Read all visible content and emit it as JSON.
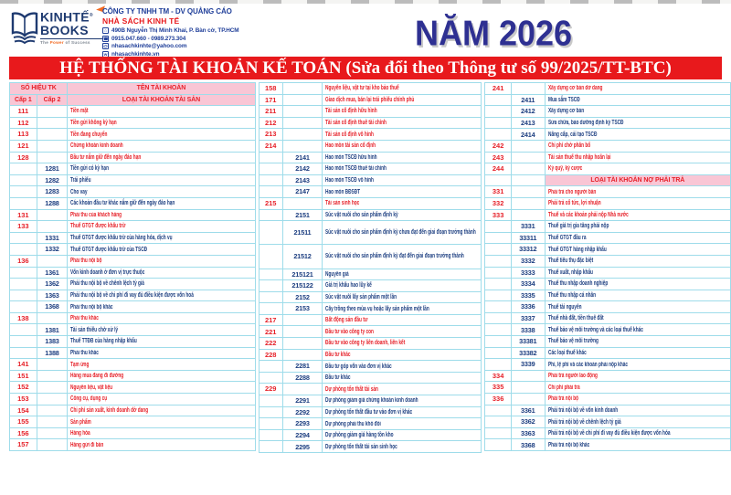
{
  "logo": {
    "name_top": "KINHTẾ",
    "registered": "®",
    "name_bottom": "BOOKS",
    "tagline": {
      "t1": "The ",
      "t2": "Power",
      "t3": " of Success"
    }
  },
  "company": {
    "line1": "CÔNG TY TNHH TM - DV QUẢNG CÁO",
    "line2": "NHÀ SÁCH KINH TẾ",
    "contacts": [
      {
        "icon": "location-icon",
        "glyph": "⌂",
        "text": "490B Nguyễn Thị Minh Khai, P. Bàn cờ, TP.HCM"
      },
      {
        "icon": "phone-icon",
        "glyph": "☎",
        "text": "0915.047.660 - 0989.273.304"
      },
      {
        "icon": "email-icon",
        "glyph": "@",
        "text": "nhasachkinhte@yahoo.com"
      },
      {
        "icon": "website-icon",
        "glyph": "w",
        "text": "nhasachkinhte.vn"
      }
    ]
  },
  "year_label": "NĂM 2026",
  "banner": {
    "title": "HỆ THỐNG TÀI KHOẢN KẾ TOÁN (Sửa đổi theo Thông tư số 99/2025/TT-BTC)"
  },
  "colors": {
    "banner_red": "#e8191c",
    "header_pink": "#f9c6d5",
    "text_red": "#e62129",
    "text_navy": "#1c3e80",
    "border_cyan": "#9edcea",
    "year_navy": "#2e3092",
    "logo_navy": "#1e3a70",
    "accent_orange": "#f26a21"
  },
  "table": {
    "header": {
      "so_hieu_tk": "SỐ HIỆU TK",
      "ten_tai_khoan": "TÊN TÀI KHOẢN",
      "cap1": "Cấp 1",
      "cap2": "Cấp 2"
    },
    "groups": [
      {
        "has_header": true,
        "section_label": "LOẠI TÀI KHOẢN TÀI SẢN",
        "rows": [
          [
            "111",
            "",
            "Tiền mặt",
            1
          ],
          [
            "112",
            "",
            "Tiền gửi không kỳ hạn",
            1
          ],
          [
            "113",
            "",
            "Tiền đang chuyển",
            1
          ],
          [
            "121",
            "",
            "Chứng khoán kinh doanh",
            1
          ],
          [
            "128",
            "",
            "Đầu tư nắm giữ đến ngày đáo hạn",
            1
          ],
          [
            "",
            "1281",
            "Tiền gửi có kỳ hạn",
            2
          ],
          [
            "",
            "1282",
            "Trái phiếu",
            2
          ],
          [
            "",
            "1283",
            "Cho vay",
            2
          ],
          [
            "",
            "1288",
            "Các khoản đầu tư khác nắm giữ đến ngày đáo hạn",
            2
          ],
          [
            "131",
            "",
            "Phải thu của khách hàng",
            1
          ],
          [
            "133",
            "",
            "Thuế GTGT được khấu trừ",
            1
          ],
          [
            "",
            "1331",
            "Thuế GTGT được khấu trừ của hàng hóa, dịch vụ",
            2
          ],
          [
            "",
            "1332",
            "Thuế GTGT được khấu trừ của TSCĐ",
            2
          ],
          [
            "136",
            "",
            "Phải thu nội bộ",
            1
          ],
          [
            "",
            "1361",
            "Vốn kinh doanh ở đơn vị trực thuộc",
            2
          ],
          [
            "",
            "1362",
            "Phải thu nội bộ về chênh lệch tỷ giá",
            2
          ],
          [
            "",
            "1363",
            "Phải thu nội bộ về chi phí đi vay đủ điều kiện được vốn hoá",
            2
          ],
          [
            "",
            "1368",
            "Phải thu nội bộ khác",
            2
          ],
          [
            "138",
            "",
            "Phải thu khác",
            1
          ],
          [
            "",
            "1381",
            "Tài sản thiếu chờ xử lý",
            2
          ],
          [
            "",
            "1383",
            "Thuế TTĐB của hàng nhập khẩu",
            2
          ],
          [
            "",
            "1388",
            "Phải thu khác",
            2
          ],
          [
            "141",
            "",
            "Tạm ứng",
            1
          ],
          [
            "151",
            "",
            "Hàng mua đang đi đường",
            1
          ],
          [
            "152",
            "",
            "Nguyên liệu, vật liệu",
            1
          ],
          [
            "153",
            "",
            "Công cụ, dụng cụ",
            1
          ],
          [
            "154",
            "",
            "Chi phí sản xuất, kinh doanh dở dang",
            1
          ],
          [
            "155",
            "",
            "Sản phẩm",
            1
          ],
          [
            "156",
            "",
            "Hàng hóa",
            1
          ],
          [
            "157",
            "",
            "Hàng gửi đi bán",
            1
          ]
        ]
      },
      {
        "has_header": false,
        "rows": [
          [
            "158",
            "",
            "Nguyên liệu, vật tư tại kho bảo thuế",
            1
          ],
          [
            "171",
            "",
            "Giao dịch mua, bán lại trái phiếu chính phủ",
            1
          ],
          [
            "211",
            "",
            "Tài sản cố định hữu hình",
            1
          ],
          [
            "212",
            "",
            "Tài sản cố định thuê tài chính",
            1
          ],
          [
            "213",
            "",
            "Tài sản cố định vô hình",
            1
          ],
          [
            "214",
            "",
            "Hao mòn tài sản cố định",
            1
          ],
          [
            "",
            "2141",
            "Hao mòn TSCĐ hữu hình",
            2
          ],
          [
            "",
            "2142",
            "Hao mòn TSCĐ thuê tài chính",
            2
          ],
          [
            "",
            "2143",
            "Hao mòn TSCĐ vô hình",
            2
          ],
          [
            "",
            "2147",
            "Hao mòn BĐSĐT",
            2
          ],
          [
            "215",
            "",
            "Tài sản sinh học",
            1
          ],
          [
            "",
            "2151",
            "Súc vật nuôi cho sản phẩm định kỳ",
            2
          ],
          [
            "",
            "21511",
            "Súc vật nuôi cho sản phẩm định kỳ chưa đạt đến giai đoạn trưởng thành",
            "2t"
          ],
          [
            "",
            "21512",
            "Súc vật nuôi cho sản phẩm định kỳ đạt đến giai đoạn trưởng thành",
            "2t"
          ],
          [
            "",
            "215121",
            "Nguyên giá",
            2
          ],
          [
            "",
            "215122",
            "Giá trị khấu hao lũy kế",
            2
          ],
          [
            "",
            "2152",
            "Súc vật nuôi lấy sản phẩm một lần",
            2
          ],
          [
            "",
            "2153",
            "Cây trồng theo mùa vụ hoặc lấy sản phẩm một lần",
            2
          ],
          [
            "217",
            "",
            "Bất động sản đầu tư",
            1
          ],
          [
            "221",
            "",
            "Đầu tư vào công ty con",
            1
          ],
          [
            "222",
            "",
            "Đầu tư vào công ty liên doanh, liên kết",
            1
          ],
          [
            "228",
            "",
            "Đầu tư khác",
            1
          ],
          [
            "",
            "2281",
            "Đầu tư góp vốn vào đơn vị khác",
            2
          ],
          [
            "",
            "2288",
            "Đầu tư khác",
            2
          ],
          [
            "229",
            "",
            "Dự phòng tổn thất tài sản",
            1
          ],
          [
            "",
            "2291",
            "Dự phòng giảm giá chứng khoán kinh doanh",
            2
          ],
          [
            "",
            "2292",
            "Dự phòng tổn thất đầu tư vào đơn vị khác",
            2
          ],
          [
            "",
            "2293",
            "Dự phòng phải thu khó đòi",
            2
          ],
          [
            "",
            "2294",
            "Dự phòng giảm giá hàng tồn kho",
            2
          ],
          [
            "",
            "2295",
            "Dự phòng tổn thất tài sản sinh học",
            2
          ]
        ]
      },
      {
        "has_header": false,
        "section_label": "LOẠI TÀI KHOẢN NỢ PHẢI TRẢ",
        "rows": [
          [
            "241",
            "",
            "Xây dựng cơ bản dở dang",
            1
          ],
          [
            "",
            "2411",
            "Mua sắm TSCĐ",
            2
          ],
          [
            "",
            "2412",
            "Xây dựng cơ bản",
            2
          ],
          [
            "",
            "2413",
            "Sửa chữa, bảo dưỡng định kỳ TSCĐ",
            2
          ],
          [
            "",
            "2414",
            "Nâng cấp, cải tạo TSCĐ",
            2
          ],
          [
            "242",
            "",
            "Chi phí chờ phân bổ",
            1
          ],
          [
            "243",
            "",
            "Tài sản thuế thu nhập hoãn lại",
            1
          ],
          [
            "244",
            "",
            "Ký quỹ, ký cược",
            1
          ],
          [
            "",
            "",
            "LOẠI TÀI KHOẢN NỢ PHẢI TRẢ",
            "S"
          ],
          [
            "331",
            "",
            "Phải trả cho người bán",
            1
          ],
          [
            "332",
            "",
            "Phải trả cổ tức, lợi nhuận",
            1
          ],
          [
            "333",
            "",
            "Thuế và các khoản phải nộp Nhà nước",
            1
          ],
          [
            "",
            "3331",
            "Thuế giá trị gia tăng phải nộp",
            2
          ],
          [
            "",
            "33311",
            "Thuế GTGT đầu ra",
            2
          ],
          [
            "",
            "33312",
            "Thuế GTGT hàng nhập khẩu",
            2
          ],
          [
            "",
            "3332",
            "Thuế tiêu thụ đặc biệt",
            2
          ],
          [
            "",
            "3333",
            "Thuế xuất, nhập khẩu",
            2
          ],
          [
            "",
            "3334",
            "Thuế thu nhập doanh nghiệp",
            2
          ],
          [
            "",
            "3335",
            "Thuế thu nhập cá nhân",
            2
          ],
          [
            "",
            "3336",
            "Thuế tài nguyên",
            2
          ],
          [
            "",
            "3337",
            "Thuế nhà đất, tiền thuê đất",
            2
          ],
          [
            "",
            "3338",
            "Thuế bảo vệ môi trường và các loại thuế khác",
            2
          ],
          [
            "",
            "33381",
            "Thuế bảo vệ môi trường",
            2
          ],
          [
            "",
            "33382",
            "Các loại thuế khác",
            2
          ],
          [
            "",
            "3339",
            "Phí, lệ phí và các khoản phải nộp khác",
            2
          ],
          [
            "334",
            "",
            "Phải trả người lao động",
            1
          ],
          [
            "335",
            "",
            "Chi phí phải trả",
            1
          ],
          [
            "336",
            "",
            "Phải trả nội bộ",
            1
          ],
          [
            "",
            "3361",
            "Phải trả nội bộ về vốn kinh doanh",
            2
          ],
          [
            "",
            "3362",
            "Phải trả nội bộ về chênh lệch tỷ giá",
            2
          ],
          [
            "",
            "3363",
            "Phải trả nội bộ về chi phí đi vay đủ điều kiện được vốn hóa",
            2
          ],
          [
            "",
            "3368",
            "Phải trả nội bộ khác",
            2
          ]
        ]
      }
    ]
  }
}
